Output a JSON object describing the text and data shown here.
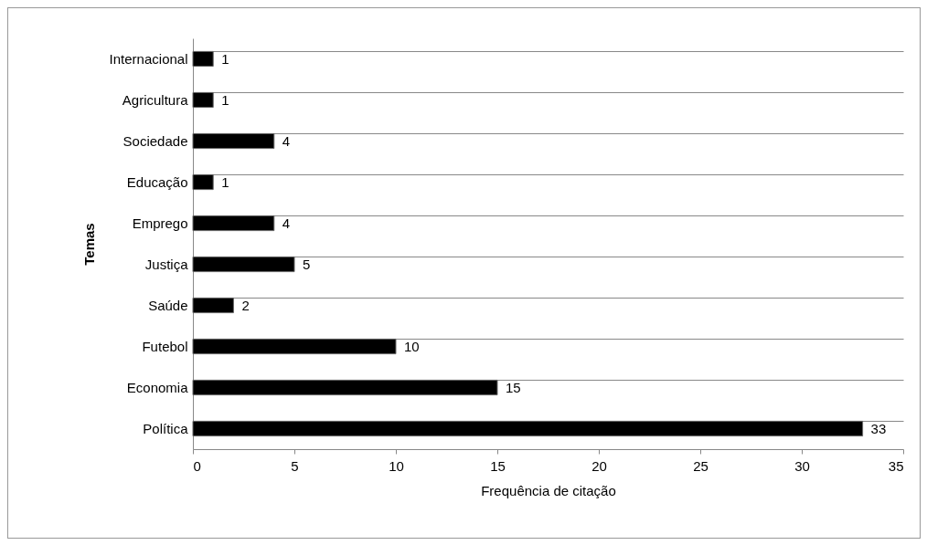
{
  "chart_data": {
    "type": "bar",
    "orientation": "horizontal",
    "xlabel": "Frequência de citação",
    "ylabel": "Temas",
    "categories": [
      "Internacional",
      "Agricultura",
      "Sociedade",
      "Educação",
      "Emprego",
      "Justiça",
      "Saúde",
      "Futebol",
      "Economia",
      "Política"
    ],
    "values": [
      1,
      1,
      4,
      1,
      4,
      5,
      2,
      10,
      15,
      33
    ],
    "color": "#000000",
    "xlim": [
      0,
      35
    ],
    "xticks": [
      0,
      5,
      10,
      15,
      20,
      25,
      30,
      35
    ],
    "grid": "y",
    "data_labels": true
  }
}
